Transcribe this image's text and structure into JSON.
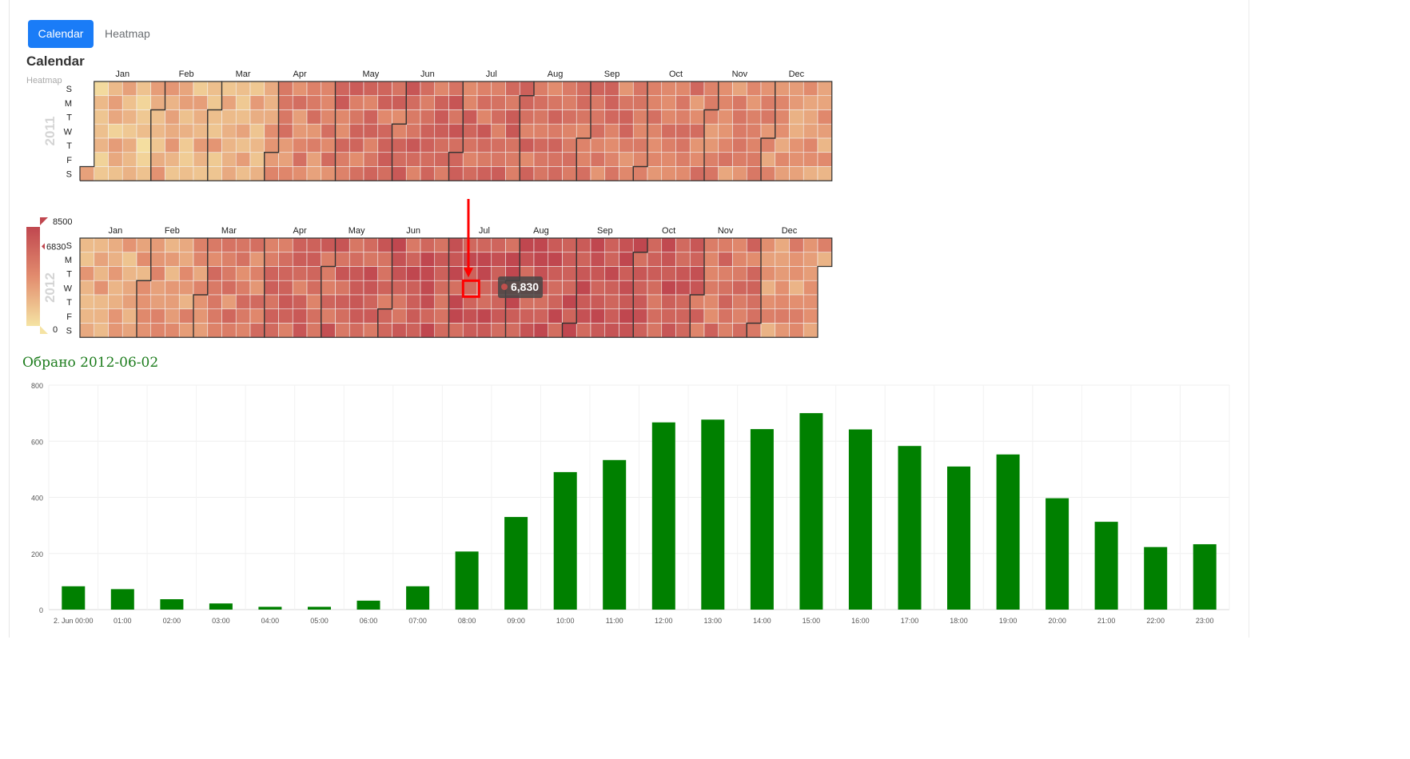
{
  "tabs": [
    {
      "label": "Calendar",
      "active": true
    },
    {
      "label": "Heatmap",
      "active": false
    }
  ],
  "header": {
    "title": "Calendar",
    "subtitle": "Heatmap"
  },
  "colors": {
    "accent": "#1a7cf7",
    "bar": "#008000",
    "selected_text": "#1e7d1e",
    "scale_low": "#f5e3a3",
    "scale_high": "#c0474f",
    "highlight": "#ff0000"
  },
  "calendar": {
    "weekday_labels": [
      "S",
      "M",
      "T",
      "W",
      "T",
      "F",
      "S"
    ],
    "month_labels": [
      "Jan",
      "Feb",
      "Mar",
      "Apr",
      "May",
      "Jun",
      "Jul",
      "Aug",
      "Sep",
      "Oct",
      "Nov",
      "Dec"
    ],
    "years": [
      {
        "label": "2011",
        "first_weekday": 6,
        "days": 365,
        "level": [
          0.22,
          0.28,
          0.33,
          0.55,
          0.68,
          0.72,
          0.7,
          0.66,
          0.62,
          0.58,
          0.5,
          0.4
        ]
      },
      {
        "label": "2012",
        "first_weekday": 0,
        "days": 366,
        "level": [
          0.35,
          0.42,
          0.58,
          0.7,
          0.78,
          0.82,
          0.86,
          0.88,
          0.92,
          0.82,
          0.68,
          0.45
        ]
      }
    ]
  },
  "legend": {
    "max_label": "8500",
    "min_label": "0",
    "pointer_label": "6830",
    "max": 8500,
    "min": 0,
    "pointer_value": 6830
  },
  "tooltip": {
    "value_label": "6,830"
  },
  "selected": {
    "label": "Обрано 2012-06-02"
  },
  "chart_data": {
    "type": "bar",
    "categories": [
      "2. Jun 00:00",
      "01:00",
      "02:00",
      "03:00",
      "04:00",
      "05:00",
      "06:00",
      "07:00",
      "08:00",
      "09:00",
      "10:00",
      "11:00",
      "12:00",
      "13:00",
      "14:00",
      "15:00",
      "16:00",
      "17:00",
      "18:00",
      "19:00",
      "20:00",
      "21:00",
      "22:00",
      "23:00"
    ],
    "values": [
      83,
      73,
      37,
      22,
      10,
      10,
      32,
      83,
      207,
      330,
      490,
      533,
      667,
      677,
      643,
      700,
      642,
      583,
      510,
      553,
      397,
      313,
      223,
      233
    ],
    "ylim": [
      0,
      800
    ],
    "yticks": [
      "0",
      "200",
      "400",
      "600",
      "800"
    ],
    "grid": true
  }
}
